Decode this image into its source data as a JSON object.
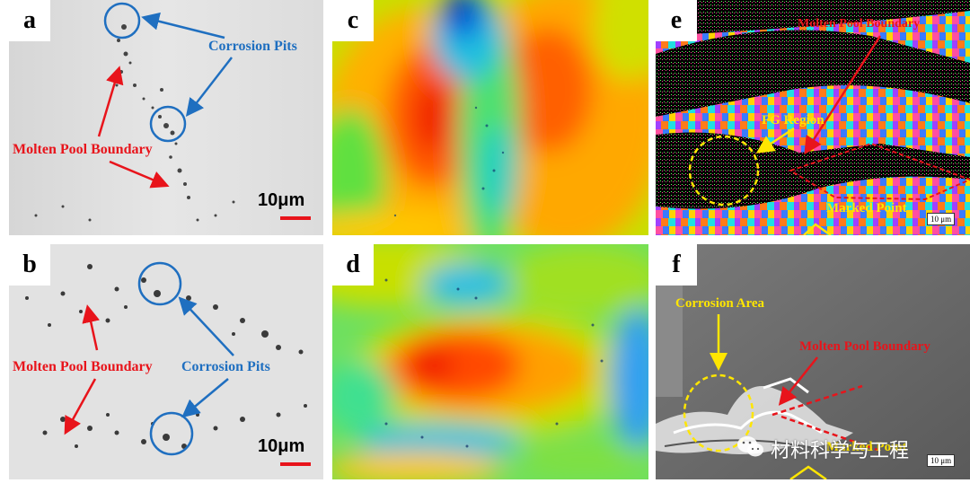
{
  "panels": {
    "a": {
      "label": "a",
      "corrosion_pits": "Corrosion Pits",
      "molten_pool": "Molten Pool Boundary",
      "scale": "10μm"
    },
    "b": {
      "label": "b",
      "corrosion_pits": "Corrosion Pits",
      "molten_pool": "Molten Pool Boundary",
      "scale": "10μm"
    },
    "c": {
      "label": "c"
    },
    "d": {
      "label": "d"
    },
    "e": {
      "label": "e",
      "molten_pool": "Molten Pool Boundary",
      "fg_region": "FG Region",
      "marked_point": "Marked Point",
      "scale": "10 μm"
    },
    "f": {
      "label": "f",
      "corrosion_area": "Corrosion Area",
      "molten_pool": "Molten Pool Boundary",
      "marked_point": "Marked Point",
      "scale": "10 μm"
    }
  },
  "watermark": {
    "text": "材料科学与工程",
    "icon": "wechat-icon"
  },
  "colors": {
    "red": "#e8141b",
    "blue": "#1f6fc0",
    "yellow": "#ffe600"
  }
}
